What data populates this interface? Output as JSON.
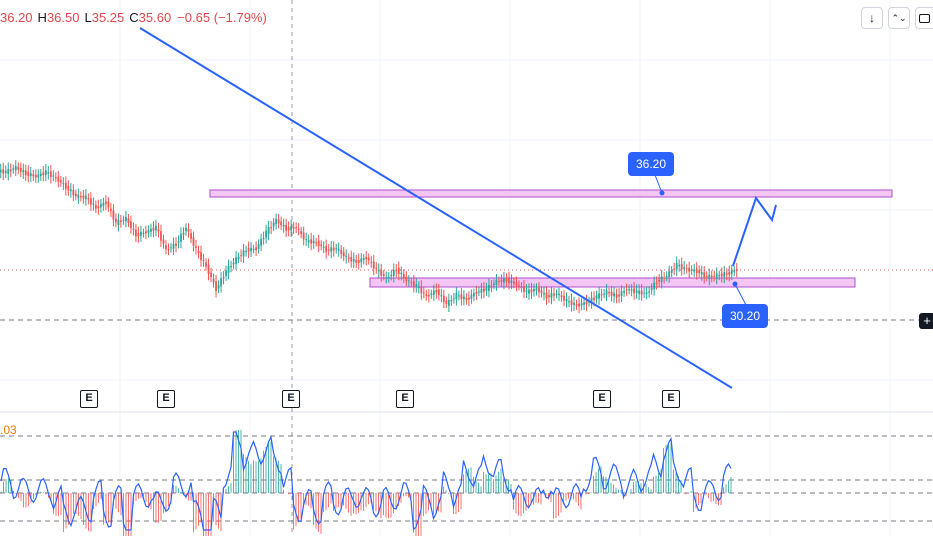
{
  "header": {
    "open_value": "36.20",
    "high_label": "H",
    "high_value": "36.50",
    "low_label": "L",
    "low_value": "35.25",
    "close_label": "C",
    "close_value": "35.60",
    "change": "−0.65 (−1.79%)"
  },
  "toolbar": {
    "arrow_down_icon": "↓",
    "collapse_icon": "⌃⌄"
  },
  "earnings_badge_label": "E",
  "price_tags": {
    "upper": "36.20",
    "lower": "30.20"
  },
  "oscillator": {
    "value_label": ".03"
  },
  "colors": {
    "up": "#26a69a",
    "down": "#ef5350",
    "trendline": "#2962ff",
    "zone_fill": "#f3c6f3",
    "zone_border": "#b04fcf",
    "osc_line": "#2962ff",
    "osc_label": "#f57c00"
  },
  "chart_data": {
    "type": "candlestick",
    "series": [
      {
        "name": "price",
        "values": [
          37.6,
          37.9,
          37.5,
          37.3,
          37.6,
          37.2,
          36.6,
          36.0,
          35.9,
          35.2,
          35.6,
          34.2,
          34.5,
          33.4,
          33.6,
          33.9,
          32.4,
          32.8,
          33.9,
          32.4,
          31.3,
          29.8,
          31.0,
          31.8,
          32.4,
          32.5,
          33.6,
          34.4,
          33.8,
          33.9,
          33.0,
          32.9,
          32.4,
          32.5,
          31.9,
          31.6,
          31.9,
          31.1,
          30.5,
          31.1,
          30.4,
          30.0,
          29.3,
          29.7,
          28.8,
          29.4,
          29.1,
          29.6,
          29.8,
          30.3,
          30.4,
          30.1,
          29.6,
          29.8,
          29.3,
          29.5,
          29.0,
          28.7,
          28.9,
          29.3,
          29.6,
          29.3,
          29.8,
          29.6,
          29.5,
          30.3,
          30.7,
          31.4,
          31.1,
          31.0,
          30.6,
          30.7,
          30.8,
          31.1
        ]
      }
    ],
    "horizontal_levels": [
      {
        "label": "36.20",
        "value": 36.2
      },
      {
        "label": "30.20",
        "value": 30.2
      }
    ],
    "earnings_markers": 6,
    "oscillator_label": ".03",
    "grid": true
  }
}
